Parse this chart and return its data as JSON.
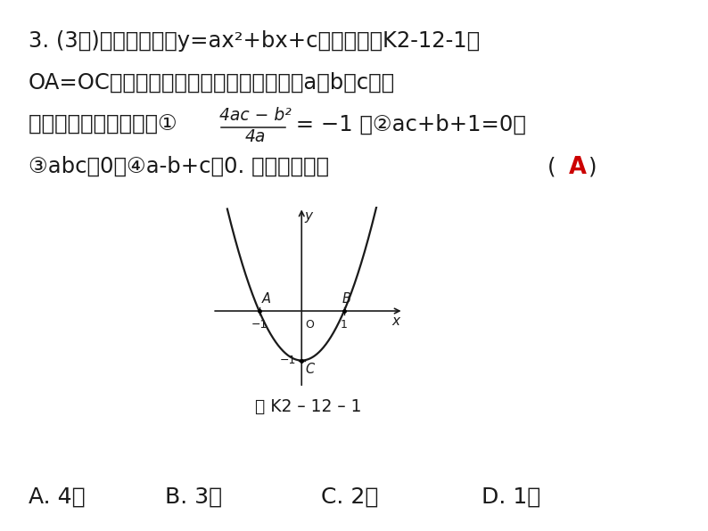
{
  "background_color": "#ffffff",
  "text_color": "#1a1a1a",
  "red_color": "#cc0000",
  "line1": "3. (3分)已知二次函数y=ax²+bx+c的图象如图K2-12-1，",
  "line2": "OA=OC，则由抛物线的特征写出如下含有a，b，c三个",
  "line3_pre": "字母的等式或不等式：① ",
  "frac_num": "4ac − b²",
  "frac_den": "4a",
  "line3_post": " = −1 ；②ac+b+1=0；",
  "line4_main": "③abc＞0；④a-b+c＞0. 其中正确的有",
  "answer": "A",
  "fig_caption": "图 K2 – 12 – 1",
  "opt_A": "A. 4个",
  "opt_B": "B. 3个",
  "opt_C": "C. 2个",
  "opt_D": "D. 1个",
  "parabola_a": 1.0,
  "parabola_b": 0.0,
  "parabola_c": -1.0,
  "graph_xlim": [
    -2.1,
    2.4
  ],
  "graph_ylim": [
    -1.55,
    2.1
  ],
  "points_A": [
    -1,
    0
  ],
  "points_B": [
    1,
    0
  ],
  "points_C": [
    0,
    -1
  ]
}
